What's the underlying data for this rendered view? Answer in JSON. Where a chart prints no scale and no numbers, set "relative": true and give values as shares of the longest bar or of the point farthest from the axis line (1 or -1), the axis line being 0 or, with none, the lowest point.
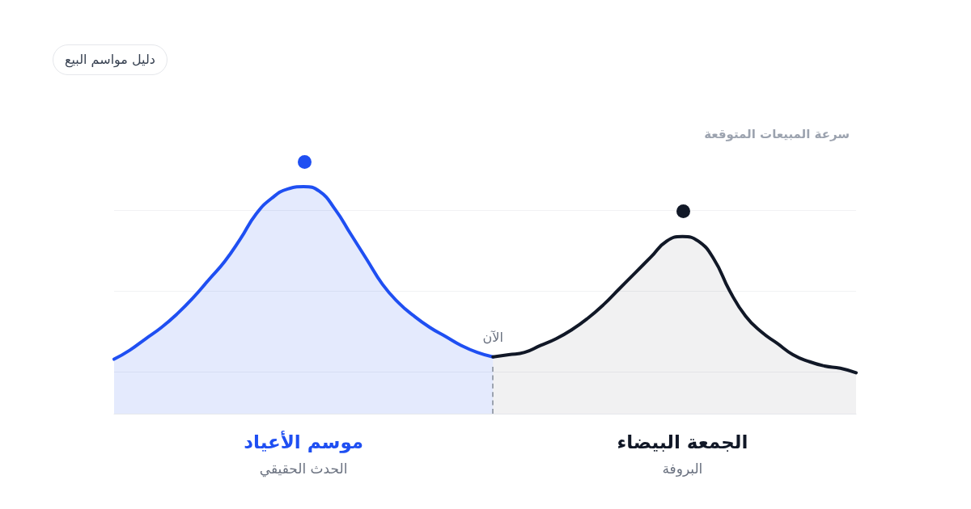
{
  "chart_data": {
    "type": "area",
    "title": "دليل مواسم البيع",
    "ylabel": "سرعة المبيعات المتوقعة",
    "relative": true,
    "grid": "y",
    "categories": [
      null,
      null,
      null,
      null,
      null,
      null,
      null,
      null,
      null,
      null,
      null,
      null,
      null,
      null,
      null,
      null,
      null,
      null,
      null,
      null,
      null,
      null,
      null,
      null,
      null,
      null,
      null,
      null,
      null,
      null,
      null,
      null,
      null,
      null,
      null,
      null,
      null,
      null,
      null,
      null,
      null,
      null,
      null,
      null,
      null,
      null,
      null,
      null
    ],
    "series": [
      {
        "name": "موسم الأعياد",
        "color": "#1f4ff2",
        "values": [
          0.24,
          0.28,
          0.33,
          0.38,
          0.44,
          0.51,
          0.59,
          0.67,
          0.77,
          0.88,
          0.95,
          0.99,
          1,
          0.98,
          0.9,
          0.79,
          0.68,
          0.57,
          0.49,
          0.43,
          0.38,
          0.34,
          0.3,
          0.27,
          0.25,
          null,
          null,
          null,
          null,
          null,
          null,
          null,
          null,
          null,
          null,
          null,
          null,
          null,
          null,
          null,
          null,
          null,
          null,
          null,
          null,
          null,
          null,
          null
        ]
      },
      {
        "name": "الجمعة البيضاء",
        "color": "#111827",
        "values": [
          null,
          null,
          null,
          null,
          null,
          null,
          null,
          null,
          null,
          null,
          null,
          null,
          null,
          null,
          null,
          null,
          null,
          null,
          null,
          null,
          null,
          null,
          null,
          null,
          0.25,
          0.26,
          0.27,
          0.3,
          0.33,
          0.37,
          0.42,
          0.48,
          0.55,
          0.62,
          0.69,
          0.76,
          0.78,
          0.76,
          0.68,
          0.54,
          0.43,
          0.36,
          0.31,
          0.26,
          0.23,
          0.21,
          0.2,
          0.18
        ]
      }
    ],
    "annotations": [
      "الآن",
      "الحدث الحقيقي",
      "البروفة"
    ]
  }
}
